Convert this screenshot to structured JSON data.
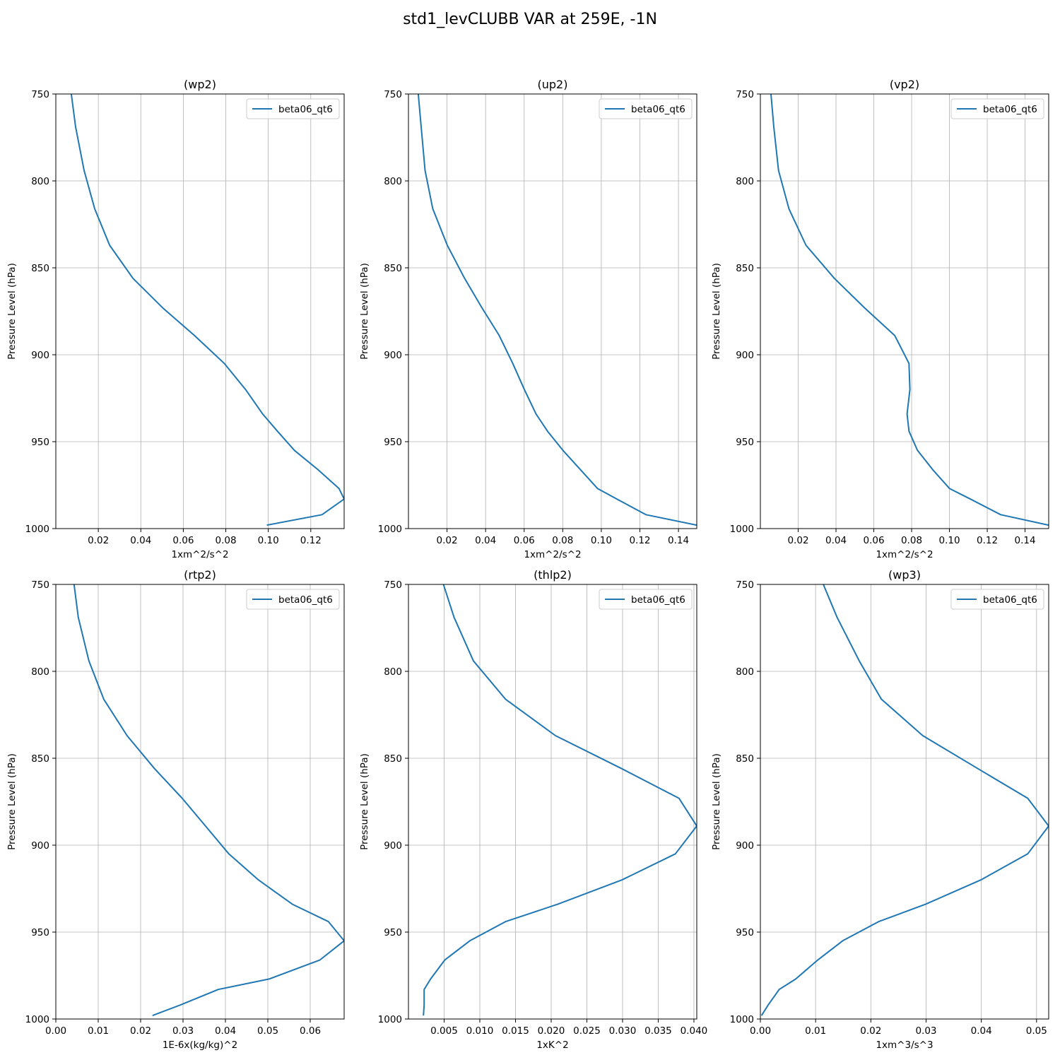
{
  "suptitle": "std1_levCLUBB VAR at 259E, -1N",
  "chart_data": [
    {
      "type": "line",
      "title": "(wp2)",
      "xlabel": "1xm^2/s^2",
      "ylabel": "Pressure Level (hPa)",
      "xlim": [
        0.0,
        0.1357
      ],
      "ylim": [
        1000,
        750
      ],
      "xticks": [
        "0.02",
        "0.04",
        "0.06",
        "0.08",
        "0.10",
        "0.12"
      ],
      "yticks": [
        "750",
        "800",
        "850",
        "900",
        "950",
        "1000"
      ],
      "grid": true,
      "legend_position": "top-right",
      "color": "#1f77b4",
      "series": [
        {
          "name": "beta06_qt6",
          "x": [
            0.0073,
            0.0093,
            0.0133,
            0.0183,
            0.0253,
            0.0363,
            0.0503,
            0.0653,
            0.0793,
            0.0893,
            0.0973,
            0.1043,
            0.1123,
            0.1233,
            0.1333,
            0.1357,
            0.1253,
            0.0993
          ],
          "y": [
            750,
            769,
            794,
            816,
            837,
            856,
            873,
            889,
            905,
            920,
            934,
            944,
            955,
            966,
            977,
            983,
            992,
            998
          ]
        }
      ]
    },
    {
      "type": "line",
      "title": "(up2)",
      "xlabel": "1xm^2/s^2",
      "ylabel": "Pressure Level (hPa)",
      "xlim": [
        0.0,
        0.1495
      ],
      "ylim": [
        1000,
        750
      ],
      "xticks": [
        "0.02",
        "0.04",
        "0.06",
        "0.08",
        "0.10",
        "0.12",
        "0.14"
      ],
      "yticks": [
        "750",
        "800",
        "850",
        "900",
        "950",
        "1000"
      ],
      "grid": true,
      "legend_position": "top-right",
      "color": "#1f77b4",
      "series": [
        {
          "name": "beta06_qt6",
          "x": [
            0.0051,
            0.0066,
            0.0086,
            0.0126,
            0.0201,
            0.0291,
            0.0381,
            0.0471,
            0.0541,
            0.0601,
            0.0661,
            0.0721,
            0.0801,
            0.0891,
            0.0981,
            0.1081,
            0.1231,
            0.1495
          ],
          "y": [
            750,
            769,
            794,
            816,
            837,
            856,
            873,
            889,
            905,
            920,
            934,
            944,
            955,
            966,
            977,
            983,
            992,
            998
          ]
        }
      ]
    },
    {
      "type": "line",
      "title": "(vp2)",
      "xlabel": "1xm^2/s^2",
      "ylabel": "Pressure Level (hPa)",
      "xlim": [
        0.0,
        0.1525
      ],
      "ylim": [
        1000,
        750
      ],
      "xticks": [
        "0.02",
        "0.04",
        "0.06",
        "0.08",
        "0.10",
        "0.12",
        "0.14"
      ],
      "yticks": [
        "750",
        "800",
        "850",
        "900",
        "950",
        "1000"
      ],
      "grid": true,
      "legend_position": "top-right",
      "color": "#1f77b4",
      "series": [
        {
          "name": "beta06_qt6",
          "x": [
            0.0056,
            0.0071,
            0.0096,
            0.0151,
            0.0241,
            0.0391,
            0.0551,
            0.0711,
            0.0786,
            0.0791,
            0.0776,
            0.0786,
            0.0831,
            0.0911,
            0.1001,
            0.1111,
            0.1271,
            0.1525
          ],
          "y": [
            750,
            769,
            794,
            816,
            837,
            856,
            873,
            889,
            905,
            920,
            934,
            944,
            955,
            966,
            977,
            983,
            992,
            998
          ]
        }
      ]
    },
    {
      "type": "line",
      "title": "(rtp2)",
      "xlabel": "1E-6x(kg/kg)^2",
      "ylabel": "Pressure Level (hPa)",
      "xlim": [
        0.0,
        0.068
      ],
      "ylim": [
        1000,
        750
      ],
      "xticks": [
        "0.00",
        "0.01",
        "0.02",
        "0.03",
        "0.04",
        "0.05",
        "0.06"
      ],
      "yticks": [
        "750",
        "800",
        "850",
        "900",
        "950",
        "1000"
      ],
      "grid": true,
      "legend_position": "top-right",
      "color": "#1f77b4",
      "series": [
        {
          "name": "beta06_qt6",
          "x": [
            0.0043,
            0.0053,
            0.0078,
            0.0113,
            0.0168,
            0.0233,
            0.0298,
            0.0353,
            0.0408,
            0.0478,
            0.0558,
            0.0643,
            0.068,
            0.0623,
            0.0503,
            0.0383,
            0.0293,
            0.0228
          ],
          "y": [
            750,
            769,
            794,
            816,
            837,
            856,
            873,
            889,
            905,
            920,
            934,
            944,
            955,
            966,
            977,
            983,
            992,
            998
          ]
        }
      ]
    },
    {
      "type": "line",
      "title": "(thlp2)",
      "xlabel": "1xK^2",
      "ylabel": "Pressure Level (hPa)",
      "xlim": [
        0.0,
        0.0404
      ],
      "ylim": [
        1000,
        750
      ],
      "xticks": [
        "0.005",
        "0.010",
        "0.015",
        "0.020",
        "0.025",
        "0.030",
        "0.035",
        "0.040"
      ],
      "yticks": [
        "750",
        "800",
        "850",
        "900",
        "950",
        "1000"
      ],
      "grid": true,
      "legend_position": "top-right",
      "color": "#1f77b4",
      "series": [
        {
          "name": "beta06_qt6",
          "x": [
            0.0049,
            0.0064,
            0.0091,
            0.0136,
            0.0206,
            0.0299,
            0.0379,
            0.0404,
            0.0374,
            0.0299,
            0.0209,
            0.0136,
            0.0086,
            0.0051,
            0.0031,
            0.0022,
            0.0022,
            0.0021
          ],
          "y": [
            750,
            769,
            794,
            816,
            837,
            856,
            873,
            889,
            905,
            920,
            934,
            944,
            955,
            966,
            977,
            983,
            992,
            998
          ]
        }
      ]
    },
    {
      "type": "line",
      "title": "(wp3)",
      "xlabel": "1xm^3/s^3",
      "ylabel": "Pressure Level (hPa)",
      "xlim": [
        0.0,
        0.0522
      ],
      "ylim": [
        1000,
        750
      ],
      "xticks": [
        "0.00",
        "0.01",
        "0.02",
        "0.03",
        "0.04",
        "0.05"
      ],
      "yticks": [
        "750",
        "800",
        "850",
        "900",
        "950",
        "1000"
      ],
      "grid": true,
      "legend_position": "top-right",
      "color": "#1f77b4",
      "series": [
        {
          "name": "beta06_qt6",
          "x": [
            0.0114,
            0.0139,
            0.0179,
            0.0219,
            0.0294,
            0.0394,
            0.0484,
            0.0522,
            0.0484,
            0.0399,
            0.0299,
            0.0214,
            0.0149,
            0.0104,
            0.0064,
            0.0034,
            0.0014,
            0.0002
          ],
          "y": [
            750,
            769,
            794,
            816,
            837,
            856,
            873,
            889,
            905,
            920,
            934,
            944,
            955,
            966,
            977,
            983,
            992,
            998
          ]
        }
      ]
    }
  ]
}
